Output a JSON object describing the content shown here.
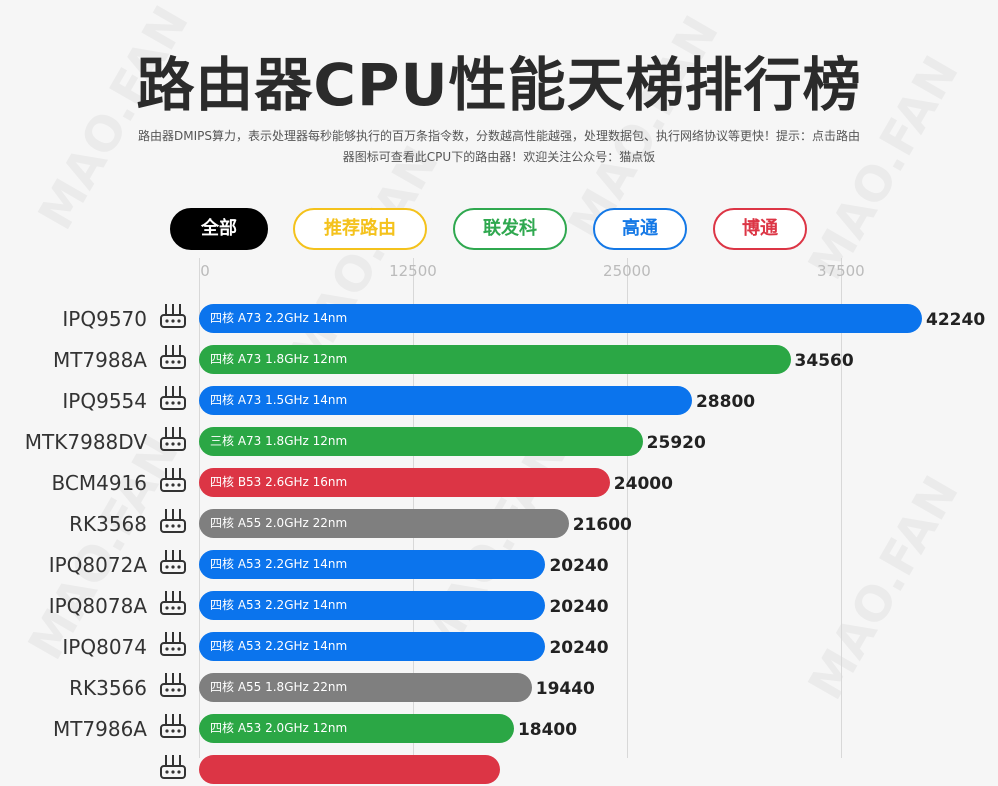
{
  "header": {
    "title": "路由器CPU性能天梯排行榜",
    "subtitle_line1": "路由器DMIPS算力，表示处理器每秒能够执行的百万条指令数，分数越高性能越强，处理数据包、执行网络协议等更快！提示：点击路由",
    "subtitle_line2": "器图标可查看此CPU下的路由器！欢迎关注公众号：猫点饭"
  },
  "watermark": "MAO.FAN",
  "filters": [
    {
      "label": "全部",
      "color": "#000000",
      "active": true
    },
    {
      "label": "推荐路由",
      "color": "#f4c21c",
      "active": false
    },
    {
      "label": "联发科",
      "color": "#2fa84f",
      "active": false
    },
    {
      "label": "高通",
      "color": "#1478e6",
      "active": false
    },
    {
      "label": "博通",
      "color": "#dc3545",
      "active": false
    }
  ],
  "colors": {
    "qualcomm": "#0b74ed",
    "mediatek": "#2ba745",
    "broadcom": "#dc3545",
    "rockchip": "#7f7f7f"
  },
  "icons": {
    "router": "router-icon"
  },
  "chart_data": {
    "type": "bar",
    "orientation": "horizontal",
    "x_ticks": [
      0,
      12500,
      25000,
      37500
    ],
    "xlim": [
      0,
      43000
    ],
    "grid": true,
    "categories": [
      "IPQ9570",
      "MT7988A",
      "IPQ9554",
      "MTK7988DV",
      "BCM4916",
      "RK3568",
      "IPQ8072A",
      "IPQ8078A",
      "IPQ8074",
      "RK3566",
      "MT7986A"
    ],
    "values": [
      42240,
      34560,
      28800,
      25920,
      24000,
      21600,
      20240,
      20240,
      20240,
      19440,
      18400
    ],
    "specs": [
      "四核 A73 2.2GHz 14nm",
      "四核 A73 1.8GHz 12nm",
      "四核 A73 1.5GHz 14nm",
      "三核 A73 1.8GHz 12nm",
      "四核 B53 2.6GHz 16nm",
      "四核 A55 2.0GHz 22nm",
      "四核 A53 2.2GHz 14nm",
      "四核 A53 2.2GHz 14nm",
      "四核 A53 2.2GHz 14nm",
      "四核 A55 1.8GHz 22nm",
      "四核 A53 2.0GHz 12nm"
    ],
    "vendors": [
      "qualcomm",
      "mediatek",
      "qualcomm",
      "mediatek",
      "broadcom",
      "rockchip",
      "qualcomm",
      "qualcomm",
      "qualcomm",
      "rockchip",
      "mediatek"
    ]
  }
}
